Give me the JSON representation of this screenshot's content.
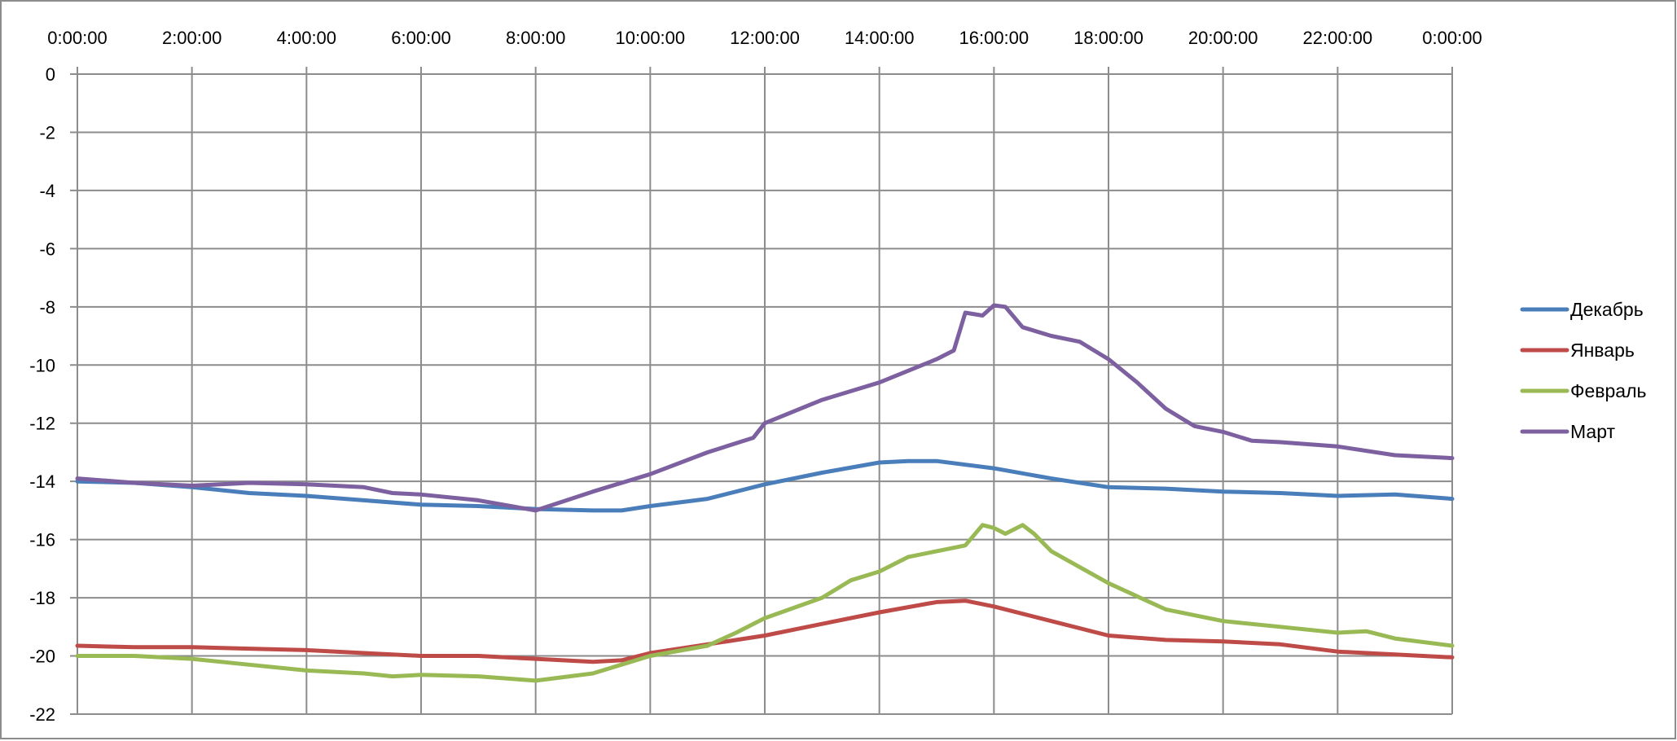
{
  "chart_data": {
    "type": "line",
    "title": "",
    "xlabel": "",
    "ylabel": "",
    "x_tick_labels": [
      "0:00:00",
      "2:00:00",
      "4:00:00",
      "6:00:00",
      "8:00:00",
      "10:00:00",
      "12:00:00",
      "14:00:00",
      "16:00:00",
      "18:00:00",
      "20:00:00",
      "22:00:00",
      "0:00:00"
    ],
    "x_unit": "hours",
    "xlim": [
      0,
      24
    ],
    "y_ticks": [
      0,
      -2,
      -4,
      -6,
      -8,
      -10,
      -12,
      -14,
      -16,
      -18,
      -20,
      -22
    ],
    "ylim": [
      -22,
      0
    ],
    "grid": true,
    "legend_position": "right",
    "series": [
      {
        "name": "Декабрь",
        "color": "#4a7ebb",
        "x": [
          0,
          1,
          2,
          3,
          4,
          5,
          6,
          7,
          8,
          9,
          9.5,
          10,
          11,
          12,
          13,
          14,
          14.5,
          15,
          16,
          17,
          18,
          19,
          20,
          21,
          22,
          23,
          24
        ],
        "values": [
          -14.0,
          -14.05,
          -14.2,
          -14.4,
          -14.5,
          -14.65,
          -14.8,
          -14.85,
          -14.95,
          -15.0,
          -15.0,
          -14.85,
          -14.6,
          -14.1,
          -13.7,
          -13.35,
          -13.3,
          -13.3,
          -13.55,
          -13.9,
          -14.2,
          -14.25,
          -14.35,
          -14.4,
          -14.5,
          -14.45,
          -14.6
        ]
      },
      {
        "name": "Январь",
        "color": "#be4b48",
        "x": [
          0,
          1,
          2,
          3,
          4,
          5,
          6,
          7,
          8,
          9,
          9.5,
          10,
          11,
          12,
          13,
          14,
          15,
          15.5,
          16,
          17,
          18,
          19,
          20,
          21,
          22,
          23,
          24
        ],
        "values": [
          -19.65,
          -19.7,
          -19.7,
          -19.75,
          -19.8,
          -19.9,
          -20.0,
          -20.0,
          -20.1,
          -20.2,
          -20.15,
          -19.9,
          -19.6,
          -19.3,
          -18.9,
          -18.5,
          -18.15,
          -18.1,
          -18.3,
          -18.8,
          -19.3,
          -19.45,
          -19.5,
          -19.6,
          -19.85,
          -19.95,
          -20.05
        ]
      },
      {
        "name": "Февраль",
        "color": "#98b954",
        "x": [
          0,
          1,
          2,
          3,
          4,
          5,
          5.5,
          6,
          7,
          8,
          9,
          10,
          11,
          11.5,
          12,
          13,
          13.5,
          14,
          14.5,
          15,
          15.5,
          15.8,
          16,
          16.2,
          16.5,
          16.7,
          17,
          18,
          19,
          20,
          21,
          22,
          22.5,
          23,
          24
        ],
        "values": [
          -20.0,
          -20.0,
          -20.1,
          -20.3,
          -20.5,
          -20.6,
          -20.7,
          -20.65,
          -20.7,
          -20.85,
          -20.6,
          -20.0,
          -19.65,
          -19.2,
          -18.7,
          -18.0,
          -17.4,
          -17.1,
          -16.6,
          -16.4,
          -16.2,
          -15.5,
          -15.6,
          -15.8,
          -15.5,
          -15.8,
          -16.4,
          -17.5,
          -18.4,
          -18.8,
          -19.0,
          -19.2,
          -19.15,
          -19.4,
          -19.65
        ]
      },
      {
        "name": "Март",
        "color": "#7d60a0",
        "x": [
          0,
          1,
          2,
          3,
          4,
          5,
          5.5,
          6,
          7,
          8,
          9,
          10,
          11,
          11.8,
          12,
          13,
          14,
          14.5,
          15,
          15.3,
          15.5,
          15.8,
          16,
          16.2,
          16.5,
          17,
          17.5,
          18,
          18.5,
          19,
          19.5,
          20,
          20.5,
          21,
          22,
          23,
          24
        ],
        "values": [
          -13.9,
          -14.05,
          -14.15,
          -14.05,
          -14.1,
          -14.2,
          -14.4,
          -14.45,
          -14.65,
          -15.0,
          -14.35,
          -13.75,
          -13.0,
          -12.5,
          -12.0,
          -11.2,
          -10.6,
          -10.2,
          -9.8,
          -9.5,
          -8.2,
          -8.3,
          -7.95,
          -8.0,
          -8.7,
          -9.0,
          -9.2,
          -9.8,
          -10.6,
          -11.5,
          -12.1,
          -12.3,
          -12.6,
          -12.65,
          -12.8,
          -13.1,
          -13.2
        ]
      }
    ]
  }
}
